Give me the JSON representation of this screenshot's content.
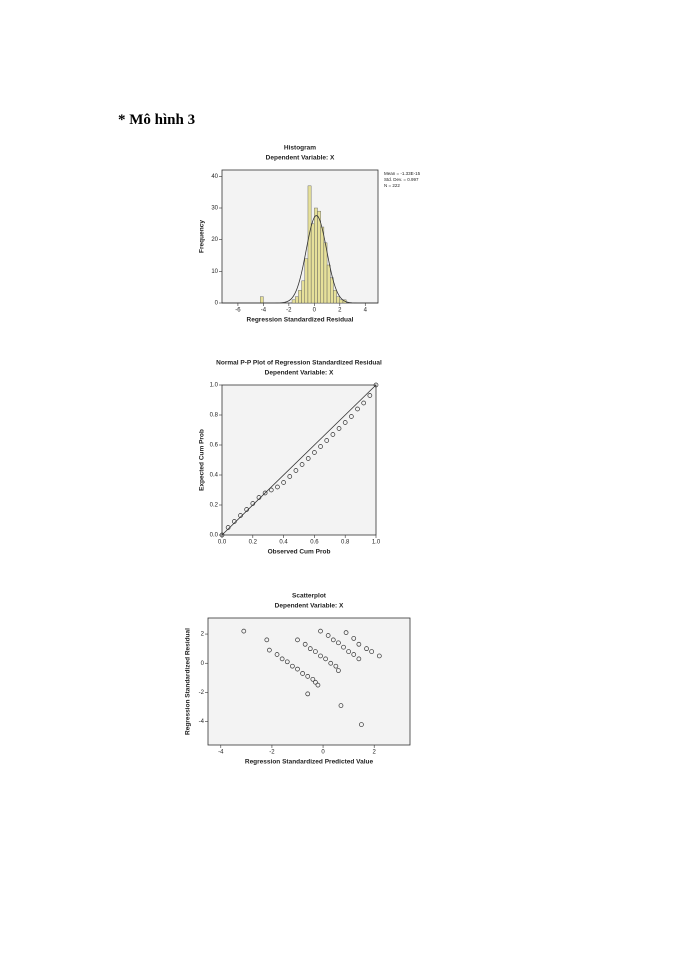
{
  "heading": "* Mô hình 3",
  "chart_data": [
    {
      "type": "histogram",
      "title": "Histogram",
      "subtitle": "Dependent Variable: X",
      "x_label": "Regression Standardized Residual",
      "y_label": "Frequency",
      "bins": [
        -4.25,
        -4,
        -3.75,
        -3.5,
        -3.25,
        -3,
        -2.75,
        -2.5,
        -2.25,
        -2,
        -1.75,
        -1.5,
        -1.25,
        -1,
        -0.75,
        -0.5,
        -0.25,
        0,
        0.25,
        0.5,
        0.75,
        1,
        1.25,
        1.5,
        1.75,
        2,
        2.25,
        2.5
      ],
      "counts": [
        2,
        0,
        0,
        0,
        0,
        0,
        0,
        0,
        0,
        0,
        1,
        2,
        4,
        7,
        14,
        37,
        25,
        30,
        29,
        24,
        19,
        12,
        8,
        4,
        2,
        1,
        1
      ],
      "color": "#e6e09a",
      "annotations": [
        "Mean = -1.33E-15",
        "Std. Dev. = 0.997",
        "N = 222"
      ],
      "normal_curve": true,
      "xlim": [
        -7.25,
        5
      ],
      "xticks": [
        -6,
        -4,
        -2,
        0,
        2,
        4
      ],
      "ylim": [
        0,
        42
      ],
      "yticks": [
        0,
        10,
        20,
        30,
        40
      ]
    },
    {
      "type": "scatter",
      "title": "Normal P-P Plot of Regression Standardized Residual",
      "subtitle": "Dependent Variable: X",
      "x_label": "Observed Cum Prob",
      "y_label": "Expected Cum Prob",
      "x": [
        0,
        0.04,
        0.08,
        0.12,
        0.16,
        0.2,
        0.24,
        0.28,
        0.32,
        0.36,
        0.4,
        0.44,
        0.48,
        0.52,
        0.56,
        0.6,
        0.64,
        0.68,
        0.72,
        0.76,
        0.8,
        0.84,
        0.88,
        0.92,
        0.96,
        1
      ],
      "y": [
        0,
        0.05,
        0.09,
        0.13,
        0.17,
        0.21,
        0.25,
        0.28,
        0.3,
        0.32,
        0.35,
        0.39,
        0.43,
        0.47,
        0.51,
        0.55,
        0.59,
        0.63,
        0.67,
        0.71,
        0.75,
        0.79,
        0.84,
        0.88,
        0.93,
        1
      ],
      "reference_line": true,
      "color": "#333333",
      "xlim": [
        0,
        1
      ],
      "xticks": [
        {
          "value": 0,
          "label": "0.0"
        },
        0.2,
        0.4,
        0.6,
        0.8,
        {
          "value": 1,
          "label": "1.0"
        }
      ],
      "ylim": [
        0,
        1
      ],
      "yticks": [
        {
          "value": 0,
          "label": "0.0"
        },
        0.2,
        0.4,
        0.6,
        0.8,
        {
          "value": 1,
          "label": "1.0"
        }
      ]
    },
    {
      "type": "scatter",
      "title": "Scatterplot",
      "subtitle": "Dependent Variable: X",
      "x_label": "Regression Standardized Predicted Value",
      "y_label": "Regression Standardized Residual",
      "x": [
        -2.1,
        -1.8,
        -1.6,
        -1.4,
        -1.2,
        -1,
        -0.8,
        -0.6,
        -0.4,
        -0.3,
        -0.2,
        -1,
        -0.7,
        -0.5,
        -0.3,
        -0.1,
        0.1,
        0.3,
        0.5,
        0.6,
        -0.1,
        0.2,
        0.4,
        0.6,
        0.8,
        1,
        1.2,
        1.4,
        0.9,
        1.2,
        1.4,
        1.7,
        1.9,
        2.2,
        -3.1,
        -2.2,
        0.7,
        1.5,
        -0.6
      ],
      "y": [
        0.9,
        0.6,
        0.3,
        0.1,
        -0.2,
        -0.4,
        -0.7,
        -0.9,
        -1.1,
        -1.3,
        -1.5,
        1.6,
        1.3,
        1,
        0.8,
        0.5,
        0.3,
        0,
        -0.2,
        -0.5,
        2.2,
        1.9,
        1.6,
        1.4,
        1.1,
        0.8,
        0.6,
        0.3,
        2.1,
        1.7,
        1.3,
        1,
        0.8,
        0.5,
        2.2,
        1.6,
        -2.9,
        -4.2,
        -2.1
      ],
      "reference_line": false,
      "color": "#333333",
      "xlim": [
        -4.5,
        3.4
      ],
      "xticks": [
        -4,
        -2,
        0,
        2
      ],
      "ylim": [
        -5.6,
        3.1
      ],
      "yticks": [
        -4,
        -2,
        0,
        2
      ]
    }
  ]
}
